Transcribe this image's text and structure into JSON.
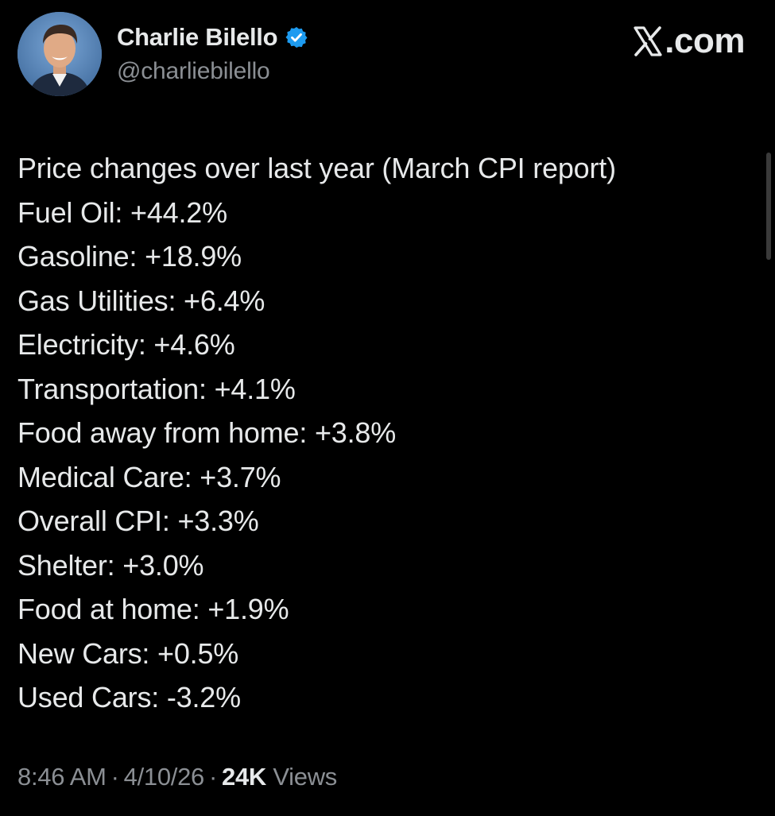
{
  "author": {
    "display_name": "Charlie Bilello",
    "handle": "@charliebilello",
    "verified": true,
    "avatar_icon": "profile-photo"
  },
  "brand": {
    "label": ".com",
    "icon": "x-logo-icon"
  },
  "post": {
    "title_line": "Price changes over last year (March CPI report)",
    "lines": [
      "Fuel Oil: +44.2%",
      "Gasoline: +18.9%",
      "Gas Utilities: +6.4%",
      "Electricity: +4.6%",
      "Transportation: +4.1%",
      "Food away from home: +3.8%",
      "Medical Care: +3.7%",
      "Overall CPI: +3.3%",
      "Shelter: +3.0%",
      "Food at home: +1.9%",
      "New Cars: +0.5%",
      "Used Cars: -3.2%"
    ]
  },
  "meta": {
    "time": "8:46 AM",
    "separator": "·",
    "date": "4/10/26",
    "views_count": "24K",
    "views_label": "Views"
  },
  "colors": {
    "background": "#000000",
    "primary_text": "#e7e9ea",
    "secondary_text": "#8b8f94",
    "verified_blue": "#1d9bf0"
  }
}
